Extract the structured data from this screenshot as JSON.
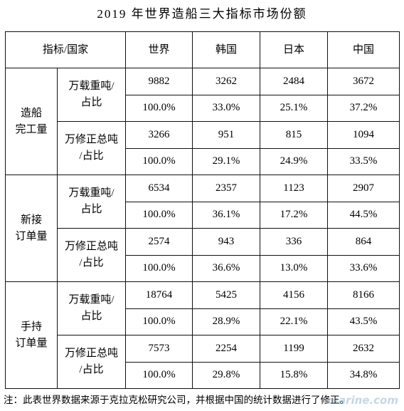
{
  "title": "2019 年世界造船三大指标市场份额",
  "table": {
    "corner_header": "指标/国家",
    "columns": [
      "世界",
      "韩国",
      "日本",
      "中国"
    ],
    "groups": [
      {
        "label": "造船\n完工量",
        "metrics": [
          {
            "label": "万载重吨/\n占比",
            "values": [
              "9882",
              "3262",
              "2484",
              "3672"
            ],
            "shares": [
              "100.0%",
              "33.0%",
              "25.1%",
              "37.2%"
            ]
          },
          {
            "label": "万修正总吨\n/占比",
            "values": [
              "3266",
              "951",
              "815",
              "1094"
            ],
            "shares": [
              "100.0%",
              "29.1%",
              "24.9%",
              "33.5%"
            ]
          }
        ]
      },
      {
        "label": "新接\n订单量",
        "metrics": [
          {
            "label": "万载重吨/\n占比",
            "values": [
              "6534",
              "2357",
              "1123",
              "2907"
            ],
            "shares": [
              "100.0%",
              "36.1%",
              "17.2%",
              "44.5%"
            ]
          },
          {
            "label": "万修正总吨\n/占比",
            "values": [
              "2574",
              "943",
              "336",
              "864"
            ],
            "shares": [
              "100.0%",
              "36.6%",
              "13.0%",
              "33.6%"
            ]
          }
        ]
      },
      {
        "label": "手持\n订单量",
        "metrics": [
          {
            "label": "万载重吨/\n占比",
            "values": [
              "18764",
              "5425",
              "4156",
              "8166"
            ],
            "shares": [
              "100.0%",
              "28.9%",
              "22.1%",
              "43.5%"
            ]
          },
          {
            "label": "万修正总吨\n/占比",
            "values": [
              "7573",
              "2254",
              "1199",
              "2632"
            ],
            "shares": [
              "100.0%",
              "29.8%",
              "15.8%",
              "34.8%"
            ]
          }
        ]
      }
    ]
  },
  "note": "注：此表世界数据来源于克拉克松研究公司，并根据中国的统计数据进行了修正。",
  "watermark": "marine.com"
}
